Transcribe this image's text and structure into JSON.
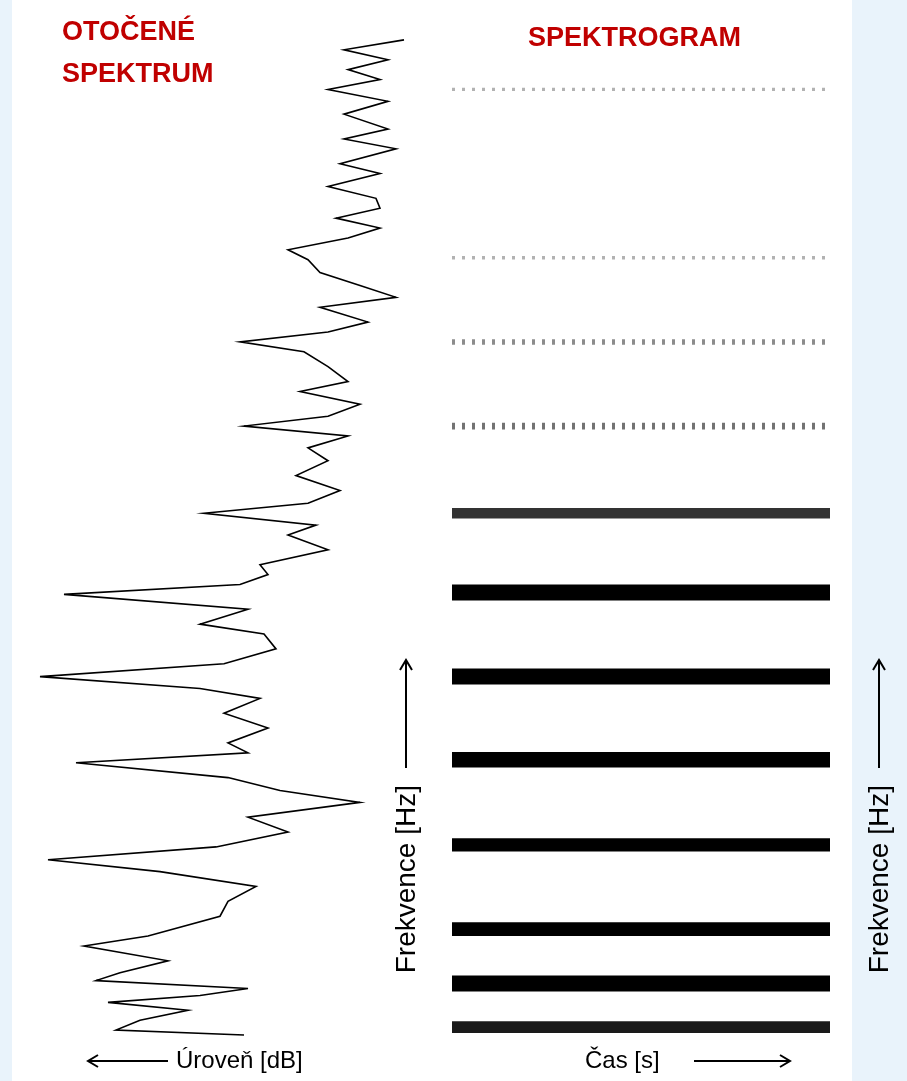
{
  "chart_data": [
    {
      "type": "line",
      "title": "OTOČENÉ SPEKTRUM",
      "x_label": "Frekvence [Hz]",
      "y_label": "Úroveň [dB]",
      "orientation": "horizontal",
      "x": [
        5,
        10,
        20,
        30,
        38,
        45,
        52,
        60,
        68,
        80,
        95,
        105,
        125,
        140,
        155,
        170,
        182,
        195,
        210,
        225,
        240,
        252,
        265,
        280,
        290,
        300,
        315,
        330,
        345,
        355,
        367,
        380,
        395,
        410,
        420,
        435,
        450,
        460,
        470,
        480,
        495,
        510,
        520,
        532,
        542,
        555,
        570,
        585,
        598,
        610,
        620,
        630,
        642,
        655,
        665,
        680,
        695,
        705,
        715,
        725,
        740,
        750,
        762,
        775,
        788,
        798,
        810,
        820,
        830,
        840,
        850,
        862,
        875,
        885,
        900,
        910,
        920,
        935,
        948,
        960,
        970,
        980,
        990,
        1000,
        1010
      ],
      "values": [
        49,
        81,
        75,
        63,
        83,
        60,
        48,
        86,
        80,
        68,
        89,
        73,
        55,
        53,
        46,
        70,
        98,
        56,
        38,
        48,
        20,
        40,
        53,
        91,
        48,
        53,
        43,
        54,
        45,
        60,
        100,
        54,
        41,
        44,
        60,
        48,
        94,
        50,
        43,
        45,
        28,
        38,
        31,
        59,
        33,
        25,
        36,
        28,
        33,
        23,
        49,
        28,
        20,
        35,
        23,
        28,
        34,
        50,
        28,
        18,
        30,
        11,
        20,
        30,
        33,
        38,
        23,
        15,
        26,
        15,
        16,
        28,
        15,
        25,
        11,
        24,
        13,
        24,
        13,
        28,
        15,
        23,
        13,
        24,
        9
      ],
      "xlim": [
        0,
        1020
      ],
      "ylim": [
        0,
        104
      ],
      "color": "#000000",
      "grid": false,
      "tick_labels": false
    },
    {
      "type": "spectrogram",
      "title": "SPEKTROGRAM",
      "x_label": "Čas [s]",
      "y_label": "Frekvence [Hz]",
      "xlim": [
        0,
        1
      ],
      "ylim": [
        0,
        1020
      ],
      "bands": [
        13,
        57,
        112,
        197,
        283,
        367,
        452,
        532,
        620,
        705,
        790,
        960
      ],
      "band_intensity": [
        0.7,
        1.0,
        0.85,
        0.8,
        0.95,
        1.0,
        1.0,
        0.6,
        0.35,
        0.25,
        0.1,
        0.1
      ],
      "color": "#000000",
      "grid": false,
      "tick_labels": false
    }
  ]
}
